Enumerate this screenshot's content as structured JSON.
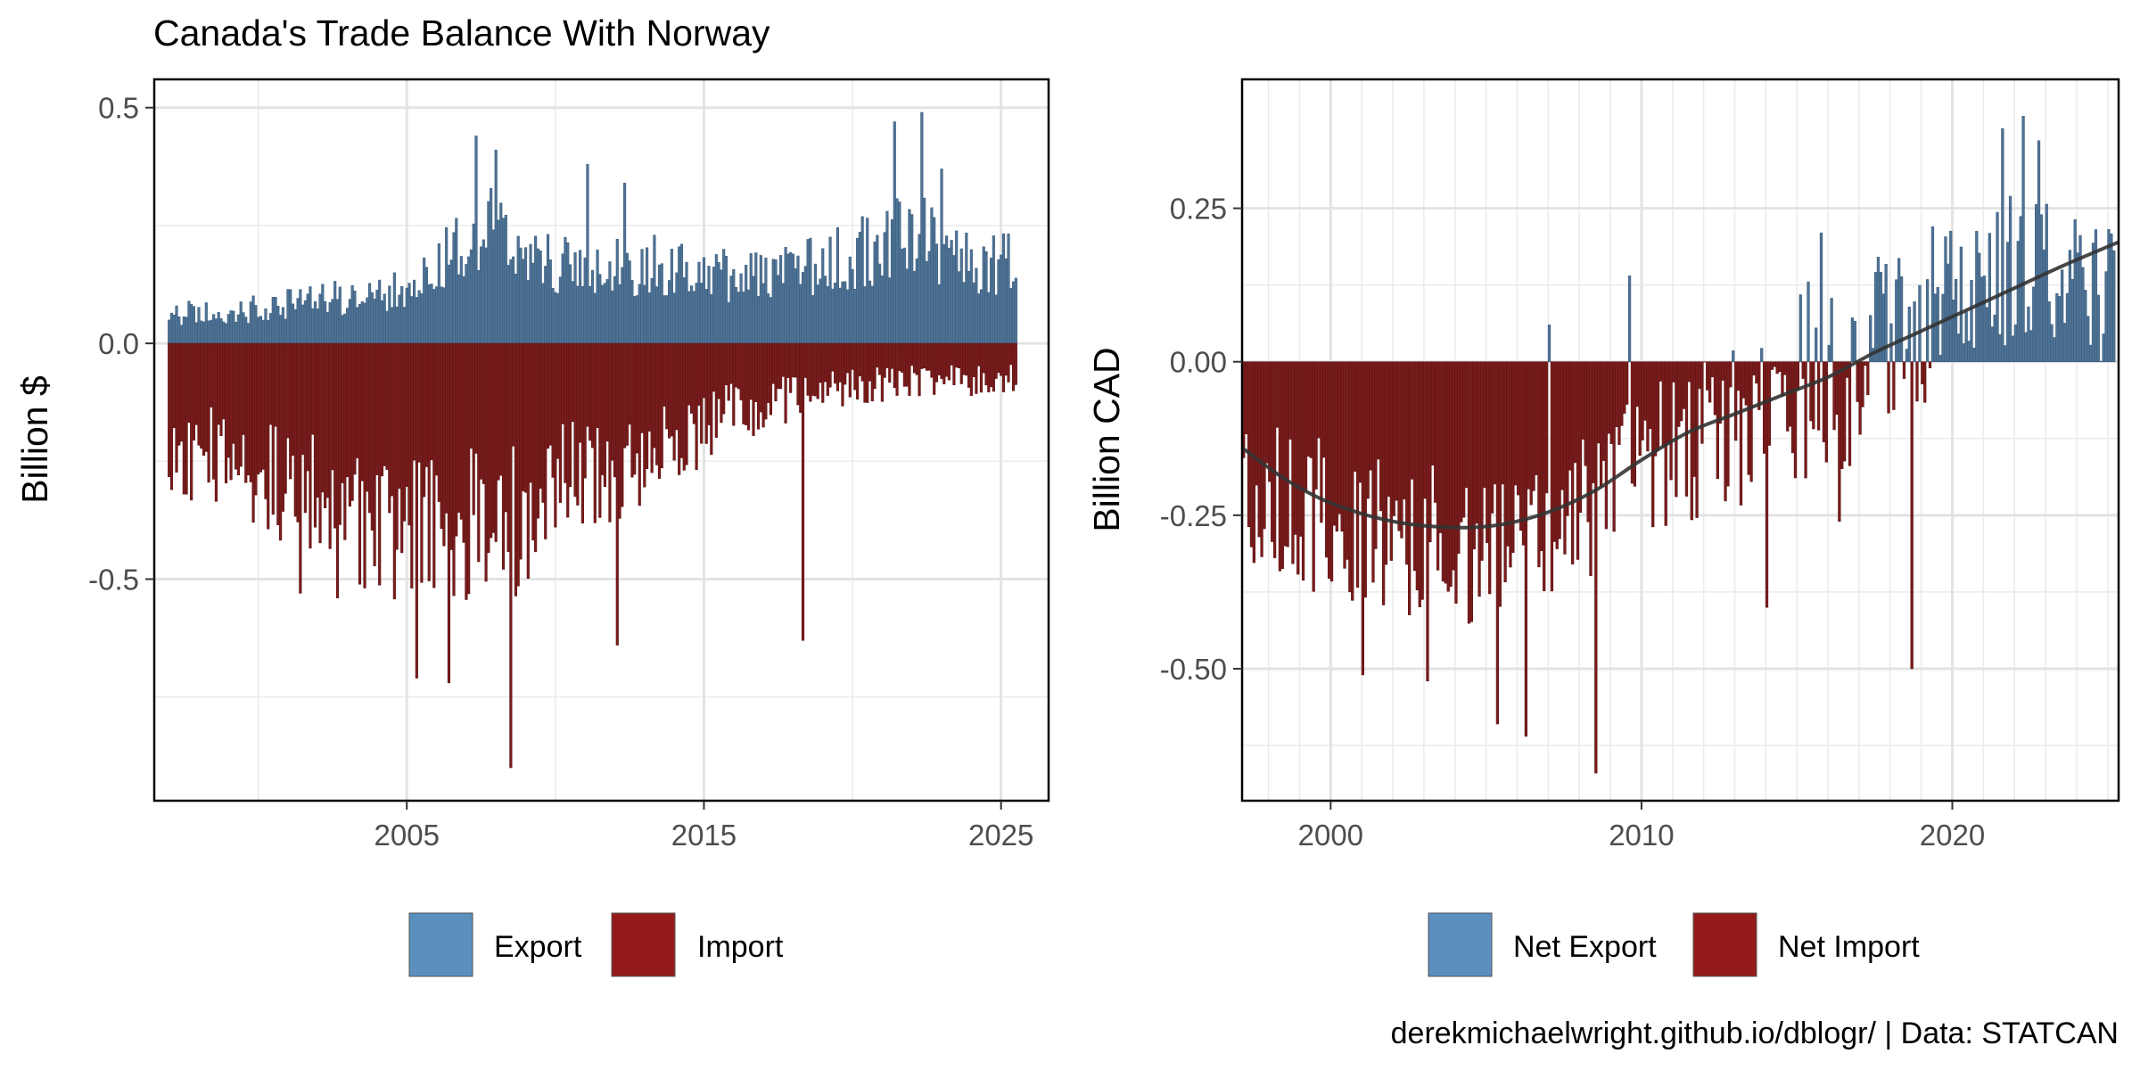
{
  "chart_data": [
    {
      "type": "bar",
      "title": "Canada's Trade Balance With Norway",
      "ylabel": "Billion $",
      "xlabel": "",
      "x_ticks": [
        2005,
        2015,
        2025
      ],
      "y_ticks": [
        0.5,
        0.0,
        -0.5
      ],
      "y_tick_labels": [
        "0.5",
        "0.0",
        "-0.5"
      ],
      "xlim": [
        1996.5,
        2026.6
      ],
      "ylim": [
        -0.97,
        0.56
      ],
      "grid": true,
      "legend_position": "bottom",
      "colors": {
        "export": "#4e7396",
        "import": "#7a1c1c",
        "export_key": "#5a8fbe",
        "import_key": "#941a1a"
      },
      "series": [
        {
          "name": "Export",
          "role": "export",
          "anchors": [
            [
              1997.0,
              0.07
            ],
            [
              1999.0,
              0.07
            ],
            [
              2001.0,
              0.09
            ],
            [
              2003.0,
              0.11
            ],
            [
              2005.0,
              0.13
            ],
            [
              2006.5,
              0.2
            ],
            [
              2007.5,
              0.28
            ],
            [
              2008.5,
              0.22
            ],
            [
              2010.0,
              0.18
            ],
            [
              2012.0,
              0.17
            ],
            [
              2014.0,
              0.18
            ],
            [
              2016.0,
              0.15
            ],
            [
              2018.0,
              0.16
            ],
            [
              2020.0,
              0.2
            ],
            [
              2022.0,
              0.25
            ],
            [
              2024.0,
              0.19
            ],
            [
              2025.5,
              0.18
            ]
          ],
          "peaks": [
            [
              2007.3,
              0.44
            ],
            [
              2008.0,
              0.41
            ],
            [
              2011.1,
              0.38
            ],
            [
              2012.3,
              0.34
            ],
            [
              2021.4,
              0.47
            ],
            [
              2022.3,
              0.49
            ],
            [
              2023.0,
              0.37
            ]
          ]
        },
        {
          "name": "Import",
          "role": "import",
          "anchors": [
            [
              1997.0,
              -0.25
            ],
            [
              1998.5,
              -0.24
            ],
            [
              2000.0,
              -0.29
            ],
            [
              2002.0,
              -0.34
            ],
            [
              2004.0,
              -0.38
            ],
            [
              2005.5,
              -0.42
            ],
            [
              2007.0,
              -0.4
            ],
            [
              2008.5,
              -0.4
            ],
            [
              2010.0,
              -0.3
            ],
            [
              2012.0,
              -0.27
            ],
            [
              2014.0,
              -0.22
            ],
            [
              2016.0,
              -0.15
            ],
            [
              2018.0,
              -0.12
            ],
            [
              2020.0,
              -0.1
            ],
            [
              2022.0,
              -0.08
            ],
            [
              2025.5,
              -0.08
            ]
          ],
          "peaks": [
            [
              2001.4,
              -0.53
            ],
            [
              2002.7,
              -0.54
            ],
            [
              2005.3,
              -0.71
            ],
            [
              2006.4,
              -0.72
            ],
            [
              2008.5,
              -0.9
            ],
            [
              2012.1,
              -0.64
            ],
            [
              2018.3,
              -0.63
            ]
          ]
        }
      ]
    },
    {
      "type": "bar",
      "title": "",
      "ylabel": "Billion CAD",
      "xlabel": "",
      "x_ticks": [
        2000,
        2010,
        2020
      ],
      "y_ticks": [
        0.25,
        0.0,
        -0.25,
        -0.5
      ],
      "y_tick_labels": [
        "0.25",
        "0.00",
        "-0.25",
        "-0.50"
      ],
      "xlim": [
        1997.15,
        2025.35
      ],
      "ylim": [
        -0.715,
        0.46
      ],
      "grid": true,
      "legend_position": "bottom",
      "colors": {
        "net_export": "#4e7396",
        "net_import": "#7a1c1c",
        "net_export_key": "#5a8fbe",
        "net_import_key": "#941a1a",
        "trend": "#333333"
      },
      "series": [
        {
          "name": "Net Export / Net Import",
          "role": "net",
          "anchors": [
            [
              1997.2,
              -0.17
            ],
            [
              1998.5,
              -0.2
            ],
            [
              2000.0,
              -0.24
            ],
            [
              2002.0,
              -0.26
            ],
            [
              2004.0,
              -0.28
            ],
            [
              2006.0,
              -0.27
            ],
            [
              2007.5,
              -0.23
            ],
            [
              2009.0,
              -0.18
            ],
            [
              2010.5,
              -0.13
            ],
            [
              2012.0,
              -0.1
            ],
            [
              2013.5,
              -0.08
            ],
            [
              2015.0,
              -0.05
            ],
            [
              2016.5,
              -0.03
            ],
            [
              2018.0,
              0.02
            ],
            [
              2019.5,
              0.05
            ],
            [
              2021.0,
              0.1
            ],
            [
              2022.0,
              0.14
            ],
            [
              2023.5,
              0.12
            ],
            [
              2025.2,
              0.1
            ]
          ],
          "peaks": [
            [
              2001.0,
              -0.51
            ],
            [
              2003.1,
              -0.52
            ],
            [
              2005.4,
              -0.59
            ],
            [
              2006.3,
              -0.61
            ],
            [
              2008.5,
              -0.67
            ],
            [
              2014.0,
              -0.4
            ],
            [
              2016.4,
              -0.26
            ],
            [
              2018.7,
              -0.5
            ],
            [
              2021.6,
              0.38
            ],
            [
              2022.3,
              0.4
            ],
            [
              2022.8,
              0.36
            ],
            [
              2007.0,
              0.06
            ],
            [
              2009.6,
              0.14
            ],
            [
              2015.8,
              0.21
            ],
            [
              2019.4,
              0.22
            ]
          ]
        },
        {
          "name": "Trend",
          "role": "trend",
          "points": [
            [
              1997.15,
              -0.14
            ],
            [
              1998.5,
              -0.19
            ],
            [
              2000.0,
              -0.23
            ],
            [
              2002.0,
              -0.26
            ],
            [
              2004.0,
              -0.27
            ],
            [
              2005.5,
              -0.265
            ],
            [
              2007.0,
              -0.245
            ],
            [
              2008.5,
              -0.21
            ],
            [
              2010.0,
              -0.16
            ],
            [
              2011.5,
              -0.115
            ],
            [
              2013.0,
              -0.085
            ],
            [
              2014.5,
              -0.055
            ],
            [
              2016.0,
              -0.025
            ],
            [
              2017.5,
              0.015
            ],
            [
              2019.0,
              0.05
            ],
            [
              2020.5,
              0.085
            ],
            [
              2022.0,
              0.12
            ],
            [
              2023.5,
              0.155
            ],
            [
              2025.35,
              0.195
            ]
          ]
        }
      ]
    }
  ],
  "legends": {
    "left": [
      {
        "label": "Export",
        "color": "#5a8fbe"
      },
      {
        "label": "Import",
        "color": "#941a1a"
      }
    ],
    "right": [
      {
        "label": "Net Export",
        "color": "#5a8fbe"
      },
      {
        "label": "Net Import",
        "color": "#941a1a"
      }
    ]
  },
  "caption": "derekmichaelwright.github.io/dblogr/ | Data: STATCAN"
}
